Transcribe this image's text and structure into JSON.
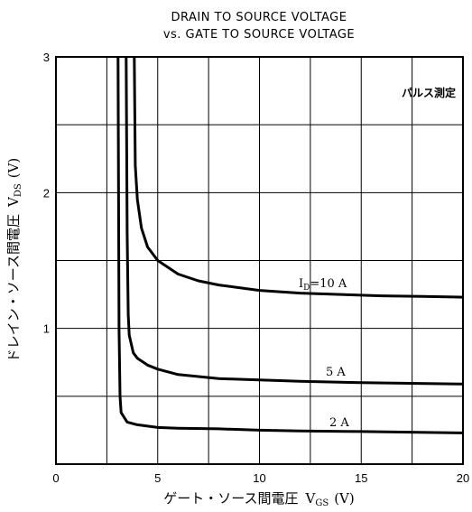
{
  "chart_data": {
    "type": "line",
    "title_line1": "DRAIN TO SOURCE VOLTAGE",
    "title_line2": "vs. GATE TO SOURCE VOLTAGE",
    "xlabel": "ゲート・ソース間電圧",
    "xlabel_symbol": "V",
    "xlabel_sub": "GS",
    "xlabel_unit": "(V)",
    "ylabel": "ドレイン・ソース間電圧",
    "ylabel_symbol": "V",
    "ylabel_sub": "DS",
    "ylabel_unit": "(V)",
    "xlim": [
      0,
      20
    ],
    "ylim": [
      0,
      3
    ],
    "x_ticks": [
      "0",
      "5",
      "10",
      "15",
      "20"
    ],
    "y_ticks": [
      "1",
      "2",
      "3"
    ],
    "grid": true,
    "annotation": "パルス測定",
    "series": [
      {
        "name": "ID=10 A",
        "label_symbol": "I",
        "label_sub": "D",
        "label_rest": "=10 A",
        "x": [
          3.85,
          3.9,
          4.0,
          4.2,
          4.5,
          5,
          6,
          7,
          8,
          10,
          12,
          14,
          16,
          18,
          20
        ],
        "y": [
          3.0,
          2.2,
          1.95,
          1.74,
          1.6,
          1.5,
          1.4,
          1.35,
          1.32,
          1.28,
          1.26,
          1.25,
          1.24,
          1.235,
          1.23
        ]
      },
      {
        "name": "5 A",
        "label": "5 A",
        "x": [
          3.45,
          3.5,
          3.55,
          3.6,
          3.8,
          4.0,
          4.5,
          5,
          6,
          8,
          10,
          12,
          15,
          20
        ],
        "y": [
          3.0,
          1.7,
          1.1,
          0.95,
          0.82,
          0.78,
          0.73,
          0.7,
          0.66,
          0.63,
          0.62,
          0.61,
          0.6,
          0.59
        ]
      },
      {
        "name": "2 A",
        "label": "2 A",
        "x": [
          3.05,
          3.1,
          3.15,
          3.2,
          3.5,
          4,
          5,
          6,
          8,
          10,
          12,
          15,
          20
        ],
        "y": [
          3.0,
          1.0,
          0.5,
          0.38,
          0.31,
          0.29,
          0.27,
          0.265,
          0.26,
          0.25,
          0.245,
          0.24,
          0.23
        ]
      }
    ]
  }
}
